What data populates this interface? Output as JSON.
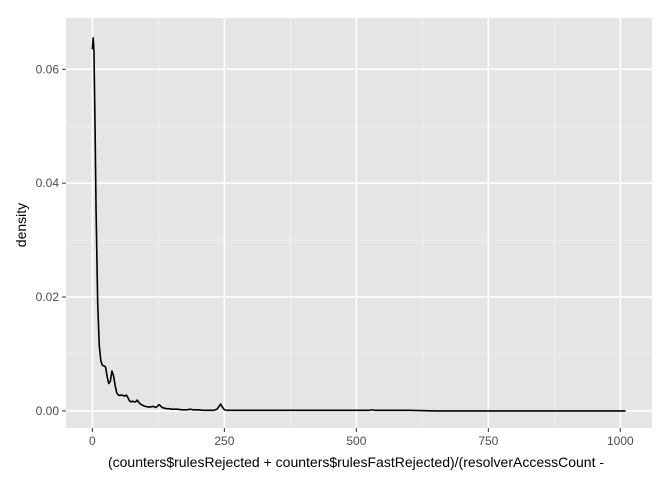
{
  "chart_data": {
    "type": "line",
    "title": "",
    "xlabel": "(counters$rulesRejected + counters$rulesFastRejected)/(resolverAccessCount -",
    "ylabel": "density",
    "xlim": [
      -50,
      1060
    ],
    "ylim": [
      -0.003,
      0.069
    ],
    "x_ticks": [
      0,
      250,
      500,
      750,
      1000
    ],
    "x_tick_labels": [
      "0",
      "250",
      "500",
      "750",
      "1000"
    ],
    "y_ticks": [
      0.0,
      0.02,
      0.04,
      0.06
    ],
    "y_tick_labels": [
      "0.00",
      "0.02",
      "0.04",
      "0.06"
    ],
    "grid": true,
    "legend": "none",
    "colors": {
      "panel": "#e5e5e5",
      "grid_major": "#ffffff",
      "grid_minor": "#f2f2f2",
      "line": "#000000"
    },
    "series": [
      {
        "x": [
          0,
          1.5,
          3,
          5,
          7,
          10,
          13,
          16,
          19,
          22,
          25,
          28,
          31,
          34,
          37,
          40,
          43,
          46,
          49,
          52,
          55,
          58,
          61,
          64,
          67,
          70,
          73,
          76,
          79,
          82,
          85,
          88,
          91,
          95,
          100,
          105,
          110,
          115,
          120,
          123,
          126,
          129,
          132,
          136,
          140,
          145,
          150,
          160,
          170,
          180,
          185,
          190,
          200,
          210,
          220,
          230,
          236,
          240,
          243,
          246,
          250,
          255,
          260,
          270,
          280,
          290,
          300,
          320,
          340,
          360,
          380,
          400,
          450,
          500,
          525,
          530,
          535,
          550,
          600,
          650,
          700,
          750,
          800,
          850,
          900,
          950,
          1000,
          1010
        ],
        "y": [
          0.0635,
          0.0655,
          0.063,
          0.05,
          0.035,
          0.019,
          0.0115,
          0.0088,
          0.008,
          0.0079,
          0.0077,
          0.006,
          0.0048,
          0.0052,
          0.007,
          0.0062,
          0.0045,
          0.0032,
          0.0028,
          0.0027,
          0.0028,
          0.0027,
          0.0026,
          0.0028,
          0.0024,
          0.0018,
          0.0016,
          0.0017,
          0.0016,
          0.0016,
          0.0019,
          0.0015,
          0.0012,
          0.001,
          0.0008,
          0.0007,
          0.0007,
          0.0008,
          0.0006,
          0.0008,
          0.0011,
          0.0009,
          0.0006,
          0.0005,
          0.0004,
          0.0004,
          0.0003,
          0.0003,
          0.0002,
          0.0002,
          0.0003,
          0.0002,
          0.0002,
          0.0001,
          0.0001,
          0.0001,
          0.0003,
          0.0008,
          0.0012,
          0.0007,
          0.0002,
          0.0001,
          0.0001,
          0.0001,
          0.0001,
          0.0001,
          0.0001,
          0.0001,
          0.0001,
          0.0001,
          0.0001,
          0.0001,
          0.0001,
          0.0001,
          0.0001,
          0.0002,
          0.0001,
          0.0001,
          0.0001,
          0.0,
          0.0,
          0.0,
          0.0,
          0.0,
          0.0,
          0.0,
          0.0,
          0.0
        ]
      }
    ]
  }
}
